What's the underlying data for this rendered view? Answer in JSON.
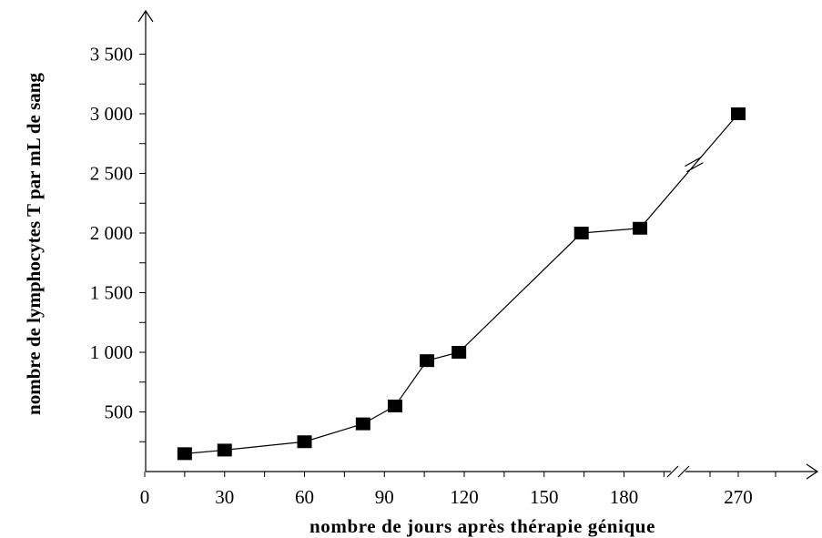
{
  "chart_data": {
    "type": "line",
    "xlabel": "nombre de jours après thérapie génique",
    "ylabel": "nombre de lymphocytes T par mL de sang",
    "x_tick_labels": [
      "0",
      "30",
      "60",
      "90",
      "120",
      "150",
      "180",
      "270"
    ],
    "y_tick_labels": [
      "500",
      "1 000",
      "1 500",
      "2 000",
      "2 500",
      "3 000",
      "3 500"
    ],
    "y_ticks": [
      500,
      1000,
      1500,
      2000,
      2500,
      3000,
      3500
    ],
    "x_ticks": [
      0,
      30,
      60,
      90,
      120,
      150,
      180,
      270
    ],
    "x_axis_break": "between 180 and 270",
    "ylim": [
      0,
      3500
    ],
    "marker": "square",
    "series": [
      {
        "x": [
          15,
          30,
          60,
          82,
          94,
          106,
          118,
          164,
          186,
          270
        ],
        "y": [
          150,
          180,
          250,
          400,
          550,
          930,
          1000,
          2000,
          2040,
          3000
        ]
      }
    ],
    "color": "#000000"
  }
}
